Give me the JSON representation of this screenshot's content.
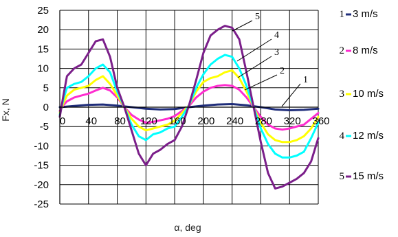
{
  "chart_data": {
    "type": "line",
    "xlabel": "α, deg",
    "ylabel": "Fx, N",
    "xlim": [
      0,
      360
    ],
    "ylim": [
      -25,
      25
    ],
    "x_ticks": [
      0,
      40,
      80,
      120,
      160,
      200,
      240,
      280,
      320,
      360
    ],
    "y_ticks": [
      25,
      20,
      15,
      10,
      5,
      0,
      -5,
      -10,
      -15,
      -20,
      -25
    ],
    "grid": true,
    "legend_position": "right",
    "series": [
      {
        "name": "3 m/s",
        "number": "1",
        "color": "#1f2d7a",
        "x": [
          0,
          20,
          40,
          60,
          80,
          100,
          120,
          140,
          160,
          180,
          200,
          220,
          240,
          260,
          280,
          300,
          320,
          340,
          360
        ],
        "y": [
          0,
          0.3,
          0.6,
          0.7,
          0.4,
          0,
          -0.4,
          -0.6,
          -0.5,
          0,
          0.4,
          0.7,
          0.8,
          0.5,
          0,
          -0.6,
          -0.8,
          -0.7,
          -0.4
        ]
      },
      {
        "name": "8 m/s",
        "number": "2",
        "color": "#ff2ccf",
        "x": [
          0,
          5,
          10,
          20,
          30,
          40,
          50,
          60,
          70,
          80,
          90,
          100,
          110,
          120,
          130,
          140,
          150,
          160,
          170,
          180,
          190,
          200,
          210,
          220,
          230,
          240,
          250,
          260,
          270,
          280,
          290,
          300,
          310,
          320,
          330,
          340,
          350,
          360
        ],
        "y": [
          -1,
          0.5,
          1.5,
          2.5,
          3,
          3.5,
          4.3,
          5,
          4.3,
          2.5,
          0,
          -2,
          -3.2,
          -4,
          -3.8,
          -3.4,
          -3,
          -2.3,
          -1,
          0.3,
          2.5,
          4,
          5,
          5.5,
          5.7,
          5.5,
          4.5,
          2.5,
          0,
          -2.5,
          -4.5,
          -5.5,
          -5.8,
          -5.5,
          -5,
          -4.5,
          -3,
          -1.5
        ]
      },
      {
        "name": "10 m/s",
        "number": "3",
        "color": "#ffff00",
        "x": [
          0,
          5,
          10,
          20,
          30,
          40,
          50,
          60,
          70,
          80,
          90,
          100,
          110,
          120,
          130,
          140,
          150,
          160,
          170,
          180,
          190,
          200,
          210,
          220,
          230,
          240,
          250,
          260,
          270,
          280,
          290,
          300,
          310,
          320,
          330,
          340,
          350,
          360
        ],
        "y": [
          -1.5,
          1,
          3,
          4.5,
          5,
          5.5,
          7,
          8,
          6,
          3,
          0,
          -3,
          -5,
          -6,
          -5.5,
          -5,
          -4.5,
          -3.5,
          -1.5,
          0.5,
          4,
          6.5,
          7.5,
          8,
          9,
          9.5,
          7.5,
          4,
          0,
          -4,
          -7,
          -8.5,
          -9,
          -9,
          -8.5,
          -7.5,
          -5.5,
          -2.5
        ]
      },
      {
        "name": "12 m/s",
        "number": "4",
        "color": "#00ffff",
        "x": [
          0,
          5,
          10,
          20,
          30,
          40,
          50,
          60,
          70,
          80,
          90,
          100,
          110,
          120,
          130,
          140,
          150,
          160,
          170,
          180,
          190,
          200,
          210,
          220,
          230,
          240,
          250,
          260,
          270,
          280,
          290,
          300,
          310,
          320,
          330,
          340,
          350,
          360
        ],
        "y": [
          -2,
          2,
          5,
          6,
          6.5,
          8,
          10,
          11,
          9,
          4,
          0,
          -4.5,
          -7.5,
          -8.5,
          -7,
          -6.5,
          -5.5,
          -5,
          -2.5,
          0.5,
          5,
          8.5,
          11,
          12.5,
          13.5,
          13,
          10,
          5.5,
          0,
          -5.5,
          -9.5,
          -12,
          -13,
          -13,
          -12.5,
          -11.5,
          -8,
          -4
        ]
      },
      {
        "name": "15 m/s",
        "number": "5",
        "color": "#7b1f8a",
        "x": [
          0,
          5,
          10,
          20,
          30,
          40,
          50,
          60,
          70,
          80,
          90,
          100,
          110,
          120,
          130,
          140,
          150,
          160,
          170,
          180,
          190,
          200,
          210,
          220,
          230,
          240,
          250,
          260,
          270,
          280,
          290,
          300,
          310,
          320,
          330,
          340,
          350,
          360
        ],
        "y": [
          -2.5,
          3,
          8,
          10,
          11,
          14,
          17,
          17.5,
          13,
          5,
          0,
          -6,
          -12,
          -15,
          -12,
          -11,
          -9.5,
          -8.5,
          -5,
          0.5,
          7,
          14,
          18.5,
          20,
          21,
          20.5,
          17.5,
          9,
          0,
          -9,
          -17,
          -21,
          -20.5,
          -19.5,
          -18.5,
          -17,
          -14,
          -8
        ]
      }
    ],
    "callouts": [
      {
        "series": "5",
        "label": "5"
      },
      {
        "series": "4",
        "label": "4"
      },
      {
        "series": "3",
        "label": "3"
      },
      {
        "series": "2",
        "label": "2"
      },
      {
        "series": "1",
        "label": "1"
      }
    ]
  }
}
